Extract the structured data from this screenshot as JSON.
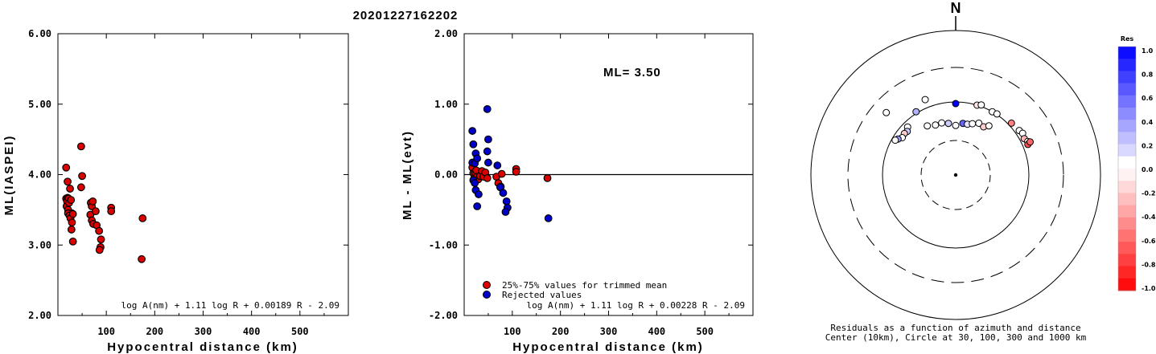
{
  "title": "20201227162202",
  "chart_data": [
    {
      "type": "scatter",
      "id": "ml-vs-distance",
      "ylabel": "ML(IASPEI)",
      "xlabel": "Hypocentral distance (km)",
      "xlim": [
        0,
        600
      ],
      "ylim": [
        2.0,
        6.0
      ],
      "xticks": [
        "100",
        "200",
        "300",
        "400",
        "500"
      ],
      "yticks": [
        "2.00",
        "3.00",
        "4.00",
        "5.00",
        "6.00"
      ],
      "formula": "log A(nm) + 1.11 log R + 0.00189 R - 2.09",
      "series": [
        {
          "color": "#dd0000",
          "points": [
            [
              17,
              4.1
            ],
            [
              20,
              3.9
            ],
            [
              17,
              3.66
            ],
            [
              20,
              3.67
            ],
            [
              19,
              3.62
            ],
            [
              22,
              3.66
            ],
            [
              18,
              3.55
            ],
            [
              21,
              3.5
            ],
            [
              23,
              3.6
            ],
            [
              25,
              3.8
            ],
            [
              27,
              3.64
            ],
            [
              29,
              3.45
            ],
            [
              21,
              3.45
            ],
            [
              24,
              3.42
            ],
            [
              26,
              3.38
            ],
            [
              29,
              3.32
            ],
            [
              31,
              3.44
            ],
            [
              28,
              3.22
            ],
            [
              31,
              3.05
            ],
            [
              48,
              4.4
            ],
            [
              50,
              3.98
            ],
            [
              48,
              3.82
            ],
            [
              68,
              3.6
            ],
            [
              70,
              3.55
            ],
            [
              72,
              3.62
            ],
            [
              67,
              3.43
            ],
            [
              70,
              3.35
            ],
            [
              73,
              3.3
            ],
            [
              78,
              3.48
            ],
            [
              80,
              3.28
            ],
            [
              85,
              3.2
            ],
            [
              89,
              3.08
            ],
            [
              88,
              2.97
            ],
            [
              86,
              2.93
            ],
            [
              110,
              3.53
            ],
            [
              110,
              3.48
            ],
            [
              175,
              3.38
            ],
            [
              173,
              2.8
            ]
          ]
        }
      ]
    },
    {
      "type": "scatter",
      "id": "residual-vs-distance",
      "ylabel": "ML - ML(evt)",
      "xlabel": "Hypocentral distance (km)",
      "xlim": [
        0,
        600
      ],
      "ylim": [
        -2.0,
        2.0
      ],
      "xticks": [
        "100",
        "200",
        "300",
        "400",
        "500"
      ],
      "yticks": [
        "-2.00",
        "-1.00",
        "0.00",
        "1.00",
        "2.00"
      ],
      "annotation": "ML= 3.50",
      "formula": "log A(nm) + 1.11 log R + 0.00228 R - 2.09",
      "series": [
        {
          "name": "25%-75% values for trimmed mean",
          "color": "#dd0000",
          "points": [
            [
              17,
              0.1
            ],
            [
              19,
              0.02
            ],
            [
              21,
              -0.05
            ],
            [
              23,
              0.03
            ],
            [
              25,
              0.06
            ],
            [
              27,
              -0.03
            ],
            [
              29,
              -0.07
            ],
            [
              33,
              -0.02
            ],
            [
              37,
              0.05
            ],
            [
              40,
              -0.03
            ],
            [
              44,
              0.03
            ],
            [
              48,
              -0.05
            ],
            [
              67,
              -0.03
            ],
            [
              71,
              -0.12
            ],
            [
              76,
              -0.17
            ],
            [
              78,
              0.01
            ],
            [
              108,
              0.08
            ],
            [
              108,
              0.04
            ],
            [
              173,
              -0.05
            ]
          ]
        },
        {
          "name": "Rejected values",
          "color": "#0000cc",
          "points": [
            [
              17,
              0.62
            ],
            [
              19,
              0.43
            ],
            [
              17,
              0.17
            ],
            [
              22,
              0.16
            ],
            [
              19,
              -0.08
            ],
            [
              22,
              -0.12
            ],
            [
              24,
              0.3
            ],
            [
              24,
              -0.22
            ],
            [
              27,
              0.23
            ],
            [
              30,
              -0.28
            ],
            [
              27,
              -0.45
            ],
            [
              48,
              0.93
            ],
            [
              50,
              0.5
            ],
            [
              48,
              0.33
            ],
            [
              50,
              0.17
            ],
            [
              69,
              0.13
            ],
            [
              75,
              -0.18
            ],
            [
              81,
              -0.26
            ],
            [
              88,
              -0.38
            ],
            [
              90,
              -0.47
            ],
            [
              86,
              -0.53
            ],
            [
              175,
              -0.62
            ]
          ]
        }
      ]
    },
    {
      "type": "scatter",
      "id": "azimuth-residual-map",
      "north_label": "N",
      "caption_lines": [
        "Residuals as a function of azimuth and distance",
        "Center (10km), Circle at 30, 100, 300 and 1000 km"
      ],
      "colorbar_title": "Res",
      "colorbar_ticks": [
        "1.0",
        "0.8",
        "0.6",
        "0.4",
        "0.2",
        "0.0",
        "-0.2",
        "-0.4",
        "-0.6",
        "-0.8",
        "-1.0"
      ],
      "rings_km": [
        30,
        100,
        300,
        1000
      ],
      "points": [
        {
          "azimuth_deg": -48,
          "distance_km": 190,
          "residual": 0.0
        },
        {
          "azimuth_deg": -22,
          "distance_km": 130,
          "residual": 0.0
        },
        {
          "azimuth_deg": -32,
          "distance_km": 105,
          "residual": 0.3
        },
        {
          "azimuth_deg": -45,
          "distance_km": 85,
          "residual": 0.0
        },
        {
          "azimuth_deg": -48,
          "distance_km": 78,
          "residual": 0.2
        },
        {
          "azimuth_deg": -51,
          "distance_km": 80,
          "residual": -0.2
        },
        {
          "azimuth_deg": -55,
          "distance_km": 78,
          "residual": 0.0
        },
        {
          "azimuth_deg": -58,
          "distance_km": 85,
          "residual": 0.4
        },
        {
          "azimuth_deg": -60,
          "distance_km": 90,
          "residual": 0.0
        },
        {
          "azimuth_deg": -30,
          "distance_km": 60,
          "residual": 0.0
        },
        {
          "azimuth_deg": -22,
          "distance_km": 55,
          "residual": 0.0
        },
        {
          "azimuth_deg": -15,
          "distance_km": 55,
          "residual": 0.0
        },
        {
          "azimuth_deg": -8,
          "distance_km": 52,
          "residual": 0.2
        },
        {
          "azimuth_deg": 0,
          "distance_km": 48,
          "residual": 0.0
        },
        {
          "azimuth_deg": 0,
          "distance_km": 95,
          "residual": 1.0
        },
        {
          "azimuth_deg": 8,
          "distance_km": 52,
          "residual": 0.6
        },
        {
          "azimuth_deg": 13,
          "distance_km": 52,
          "residual": 0.1
        },
        {
          "azimuth_deg": 18,
          "distance_km": 55,
          "residual": 0.0
        },
        {
          "azimuth_deg": 24,
          "distance_km": 60,
          "residual": 0.0
        },
        {
          "azimuth_deg": 30,
          "distance_km": 58,
          "residual": -0.2
        },
        {
          "azimuth_deg": 34,
          "distance_km": 65,
          "residual": 0.0
        },
        {
          "azimuth_deg": 17,
          "distance_km": 100,
          "residual": -0.1
        },
        {
          "azimuth_deg": 20,
          "distance_km": 105,
          "residual": 0.0
        },
        {
          "azimuth_deg": 30,
          "distance_km": 100,
          "residual": 0.0
        },
        {
          "azimuth_deg": 34,
          "distance_km": 102,
          "residual": 0.0
        },
        {
          "azimuth_deg": 47,
          "distance_km": 110,
          "residual": -0.5
        },
        {
          "azimuth_deg": 55,
          "distance_km": 115,
          "residual": 0.0
        },
        {
          "azimuth_deg": 58,
          "distance_km": 120,
          "residual": 0.0
        },
        {
          "azimuth_deg": 62,
          "distance_km": 115,
          "residual": -0.3
        },
        {
          "azimuth_deg": 65,
          "distance_km": 122,
          "residual": 0.0
        },
        {
          "azimuth_deg": 67,
          "distance_km": 118,
          "residual": -0.7
        },
        {
          "azimuth_deg": 66,
          "distance_km": 130,
          "residual": -0.6
        }
      ]
    }
  ]
}
